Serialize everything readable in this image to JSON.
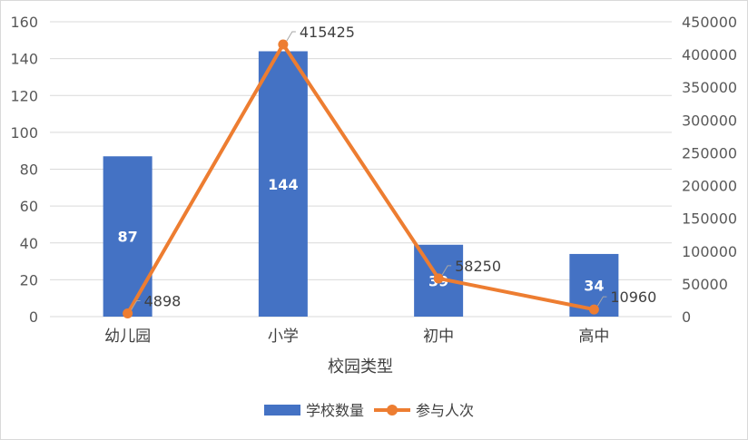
{
  "chart_data": {
    "type": "bar",
    "title": "",
    "xlabel": "校园类型",
    "categories": [
      "幼儿园",
      "小学",
      "初中",
      "高中"
    ],
    "series": [
      {
        "name": "学校数量",
        "type": "bar",
        "axis": "left",
        "values": [
          87,
          144,
          39,
          34
        ],
        "color": "#4472C4"
      },
      {
        "name": "参与人次",
        "type": "line",
        "axis": "right",
        "values": [
          4898,
          415425,
          58250,
          10960
        ],
        "color": "#ED7D31"
      }
    ],
    "ylim_left": [
      0,
      160
    ],
    "ylim_right": [
      0,
      450000
    ],
    "yticks_left": [
      "0",
      "20",
      "40",
      "60",
      "80",
      "100",
      "120",
      "140",
      "160"
    ],
    "yticks_right": [
      "0",
      "50000",
      "100000",
      "150000",
      "200000",
      "250000",
      "300000",
      "350000",
      "400000",
      "450000"
    ],
    "grid": true,
    "legend_position": "bottom"
  }
}
